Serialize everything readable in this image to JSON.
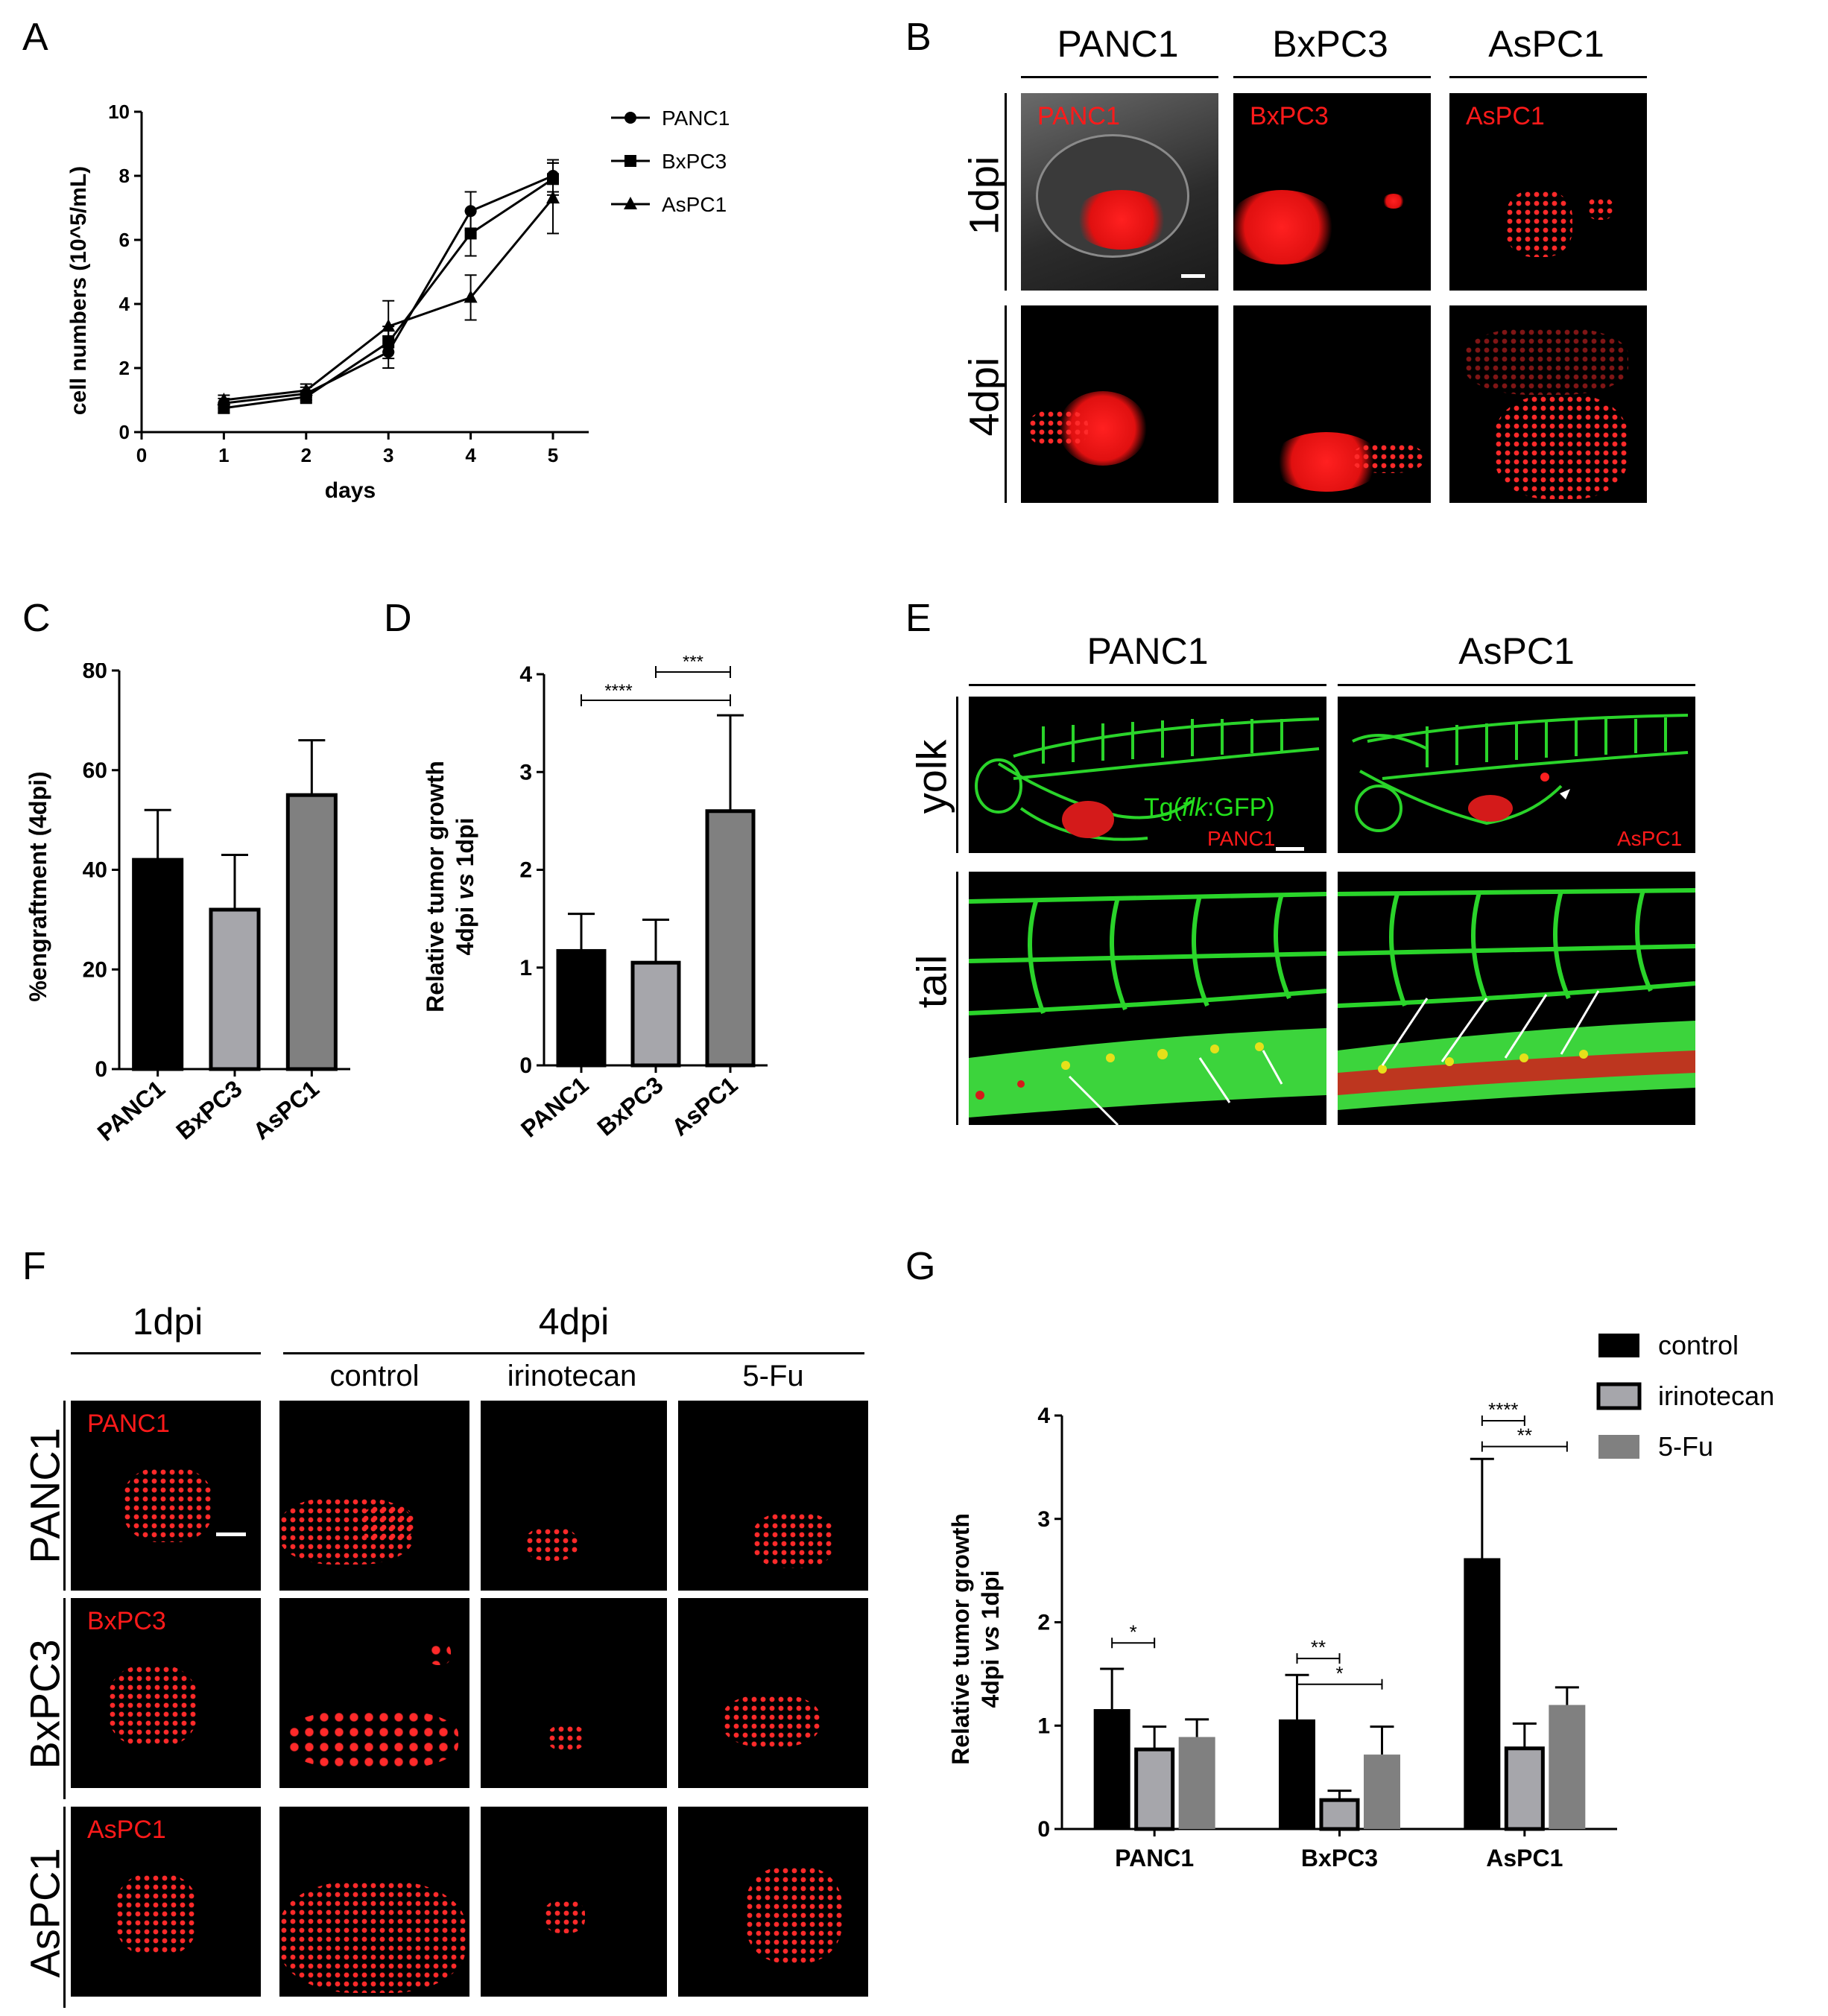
{
  "panels": {
    "A": "A",
    "B": "B",
    "C": "C",
    "D": "D",
    "E": "E",
    "F": "F",
    "G": "G"
  },
  "chart_A": {
    "type": "line",
    "ylabel": "cell numbers (10^5/mL)",
    "xlabel": "days",
    "ylim": [
      0,
      10
    ],
    "xlim": [
      0,
      5
    ],
    "x_ticks": [
      "0",
      "1",
      "2",
      "3",
      "4",
      "5"
    ],
    "y_ticks": [
      "0",
      "2",
      "4",
      "6",
      "8",
      "10"
    ],
    "legend": [
      "PANC1",
      "BxPC3",
      "AsPC1"
    ],
    "legend_position": "top-right"
  },
  "chart_C": {
    "type": "bar",
    "ylabel": "%engraftment (4dpi)",
    "categories": [
      "PANC1",
      "BxPC3",
      "AsPC1"
    ],
    "y_ticks": [
      "0",
      "20",
      "40",
      "60",
      "80"
    ],
    "ylim": [
      0,
      80
    ]
  },
  "chart_D": {
    "type": "bar",
    "ylabel_line1": "Relative tumor growth",
    "ylabel_line2_a": "4dpi ",
    "ylabel_line2_b": "vs",
    "ylabel_line2_c": " 1dpi",
    "categories": [
      "PANC1",
      "BxPC3",
      "AsPC1"
    ],
    "y_ticks": [
      "0",
      "1",
      "2",
      "3",
      "4"
    ],
    "ylim": [
      0,
      4
    ],
    "sig": [
      "****",
      "***"
    ]
  },
  "chart_G": {
    "type": "bar",
    "ylabel_line1": "Relative tumor growth",
    "ylabel_line2_a": "4dpi ",
    "ylabel_line2_b": "vs",
    "ylabel_line2_c": " 1dpi",
    "categories": [
      "PANC1",
      "BxPC3",
      "AsPC1"
    ],
    "y_ticks": [
      "0",
      "1",
      "2",
      "3",
      "4"
    ],
    "ylim": [
      0,
      4
    ],
    "legend": [
      "control",
      "irinotecan",
      "5-Fu"
    ],
    "legend_position": "top-right",
    "sig": [
      "*",
      "**",
      "*",
      "****",
      "**"
    ]
  },
  "chart_data": [
    {
      "type": "line",
      "xlabel": "days",
      "ylabel": "cell numbers (10^5/mL)",
      "xlim": [
        0,
        5
      ],
      "ylim": [
        0,
        10
      ],
      "x": [
        1,
        2,
        3,
        4,
        5
      ],
      "series": [
        {
          "name": "PANC1",
          "marker": "circle",
          "values": [
            0.9,
            1.2,
            2.5,
            6.9,
            8.0
          ],
          "err": [
            0.15,
            0.2,
            0.5,
            0.6,
            0.5
          ]
        },
        {
          "name": "BxPC3",
          "marker": "square",
          "values": [
            0.75,
            1.1,
            2.8,
            6.2,
            7.9
          ],
          "err": [
            0.15,
            0.2,
            0.5,
            0.7,
            0.5
          ]
        },
        {
          "name": "AsPC1",
          "marker": "triangle",
          "values": [
            1.0,
            1.3,
            3.3,
            4.2,
            7.3
          ],
          "err": [
            0.15,
            0.2,
            0.8,
            0.7,
            1.1
          ]
        }
      ]
    },
    {
      "type": "bar",
      "ylabel": "%engraftment (4dpi)",
      "ylim": [
        0,
        80
      ],
      "categories": [
        "PANC1",
        "BxPC3",
        "AsPC1"
      ],
      "values": [
        42,
        32,
        55
      ],
      "err": [
        10,
        11,
        11
      ],
      "colors": [
        "#000000",
        "#a6a6ab",
        "#808080"
      ]
    },
    {
      "type": "bar",
      "ylabel": "Relative tumor growth 4dpi vs 1dpi",
      "ylim": [
        0,
        4
      ],
      "categories": [
        "PANC1",
        "BxPC3",
        "AsPC1"
      ],
      "values": [
        1.17,
        1.05,
        2.6
      ],
      "err": [
        0.38,
        0.44,
        0.98
      ],
      "colors": [
        "#000000",
        "#a6a6ab",
        "#808080"
      ]
    },
    {
      "type": "bar",
      "ylabel": "Relative tumor growth 4dpi vs 1dpi",
      "ylim": [
        0,
        4
      ],
      "categories": [
        "PANC1",
        "BxPC3",
        "AsPC1"
      ],
      "series": [
        {
          "name": "control",
          "values": [
            1.16,
            1.06,
            2.62
          ],
          "err": [
            0.39,
            0.43,
            0.96
          ],
          "color": "#000000"
        },
        {
          "name": "irinotecan",
          "values": [
            0.77,
            0.28,
            0.78
          ],
          "err": [
            0.22,
            0.09,
            0.24
          ],
          "color": "#a6a6ab"
        },
        {
          "name": "5-Fu",
          "values": [
            0.89,
            0.72,
            1.2
          ],
          "err": [
            0.17,
            0.27,
            0.17
          ],
          "color": "#808080"
        }
      ]
    }
  ],
  "panel_B": {
    "cols": [
      "PANC1",
      "BxPC3",
      "AsPC1"
    ],
    "rows": [
      "1dpi",
      "4dpi"
    ],
    "labels": [
      "PANC1",
      "BxPC3",
      "AsPC1"
    ]
  },
  "panel_E": {
    "cols": [
      "PANC1",
      "AsPC1"
    ],
    "rows": [
      "yolk",
      "tail"
    ],
    "tg_a": "Tg(",
    "tg_b": "flk",
    "tg_c": ":GFP)",
    "label_panc1": "PANC1",
    "label_aspc1": "AsPC1"
  },
  "panel_F": {
    "top_left": "1dpi",
    "top_right": "4dpi",
    "cols": [
      "control",
      "irinotecan",
      "5-Fu"
    ],
    "rows": [
      "PANC1",
      "BxPC3",
      "AsPC1"
    ],
    "labels": [
      "PANC1",
      "BxPC3",
      "AsPC1"
    ]
  },
  "colors": {
    "red": "#ff1a1a",
    "green": "#22e01a",
    "black": "#000000",
    "lightgray": "#a6a6ab",
    "gray": "#808080"
  }
}
